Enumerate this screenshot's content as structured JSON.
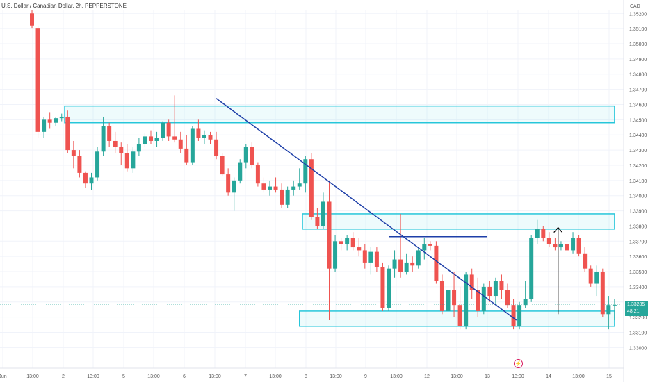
{
  "header": {
    "title": "U.S. Dollar / Canadian Dollar, 2h, PEPPERSTONE",
    "currency": "CAD"
  },
  "last_price": {
    "value": "1.33285",
    "countdown": "48:21"
  },
  "colors": {
    "up": "#26a69a",
    "down": "#ef5350",
    "zone": "#26c6da",
    "trendline": "#1e3fa8",
    "grid": "#f0f3fa",
    "arrow": "#000000",
    "last_price_line": "#26a69a"
  },
  "icons": {
    "event": "lightning-icon"
  },
  "chart_data": {
    "type": "candlestick",
    "title": "U.S. Dollar / Canadian Dollar, 2h, PEPPERSTONE",
    "y_axis": {
      "ylim": [
        1.3285,
        1.3526
      ],
      "ticks": [
        "1.33000",
        "1.33100",
        "1.33200",
        "1.33300",
        "1.33400",
        "1.33500",
        "1.33600",
        "1.33700",
        "1.33800",
        "1.33900",
        "1.34000",
        "1.34100",
        "1.34200",
        "1.34300",
        "1.34400",
        "1.34500",
        "1.34600",
        "1.34700",
        "1.34800",
        "1.34900",
        "1.35000",
        "1.35100",
        "1.35200"
      ]
    },
    "x_axis": {
      "ticks": [
        "Jun",
        "13:00",
        "2",
        "13:00",
        "5",
        "13:00",
        "6",
        "13:00",
        "7",
        "13:00",
        "8",
        "13:00",
        "9",
        "13:00",
        "12",
        "13:00",
        "13",
        "13:00",
        "14",
        "13:00",
        "15"
      ],
      "bar_index_range": [
        0,
        99
      ]
    },
    "ohlc": [
      [
        1.352,
        1.3522,
        1.351,
        1.3512
      ],
      [
        1.351,
        1.3512,
        1.3438,
        1.3442
      ],
      [
        1.3442,
        1.3452,
        1.3438,
        1.345
      ],
      [
        1.345,
        1.3455,
        1.3444,
        1.3448
      ],
      [
        1.3448,
        1.3452,
        1.3446,
        1.3451
      ],
      [
        1.3451,
        1.3454,
        1.3449,
        1.3452
      ],
      [
        1.3452,
        1.3456,
        1.3428,
        1.343
      ],
      [
        1.343,
        1.3436,
        1.3418,
        1.3426
      ],
      [
        1.3426,
        1.343,
        1.3412,
        1.3415
      ],
      [
        1.3415,
        1.3416,
        1.3405,
        1.3408
      ],
      [
        1.3408,
        1.3415,
        1.3404,
        1.3412
      ],
      [
        1.3412,
        1.3432,
        1.341,
        1.3429
      ],
      [
        1.3429,
        1.3452,
        1.3426,
        1.3446
      ],
      [
        1.3446,
        1.3448,
        1.3432,
        1.3436
      ],
      [
        1.3436,
        1.3442,
        1.3428,
        1.3432
      ],
      [
        1.3432,
        1.3435,
        1.342,
        1.3428
      ],
      [
        1.3428,
        1.3434,
        1.3416,
        1.3418
      ],
      [
        1.3418,
        1.3432,
        1.3415,
        1.3429
      ],
      [
        1.3429,
        1.3438,
        1.3426,
        1.3434
      ],
      [
        1.3434,
        1.3441,
        1.3432,
        1.3439
      ],
      [
        1.3439,
        1.3443,
        1.3434,
        1.3436
      ],
      [
        1.3436,
        1.3442,
        1.3432,
        1.3438
      ],
      [
        1.3438,
        1.3449,
        1.3436,
        1.3448
      ],
      [
        1.3448,
        1.345,
        1.3436,
        1.3439
      ],
      [
        1.3439,
        1.3466,
        1.3435,
        1.3437
      ],
      [
        1.3437,
        1.3442,
        1.3428,
        1.3431
      ],
      [
        1.3431,
        1.344,
        1.342,
        1.3422
      ],
      [
        1.3422,
        1.3446,
        1.342,
        1.3444
      ],
      [
        1.3444,
        1.345,
        1.3436,
        1.3438
      ],
      [
        1.3438,
        1.3443,
        1.3434,
        1.344
      ],
      [
        1.344,
        1.3442,
        1.3434,
        1.3437
      ],
      [
        1.3437,
        1.3442,
        1.3424,
        1.3426
      ],
      [
        1.3426,
        1.3428,
        1.3413,
        1.3414
      ],
      [
        1.3414,
        1.3418,
        1.34,
        1.3402
      ],
      [
        1.3402,
        1.3412,
        1.339,
        1.341
      ],
      [
        1.341,
        1.3424,
        1.3408,
        1.3422
      ],
      [
        1.3422,
        1.3434,
        1.3418,
        1.3432
      ],
      [
        1.3432,
        1.3435,
        1.3418,
        1.342
      ],
      [
        1.342,
        1.3422,
        1.3406,
        1.3408
      ],
      [
        1.3408,
        1.3412,
        1.3402,
        1.3404
      ],
      [
        1.3404,
        1.341,
        1.34,
        1.3406
      ],
      [
        1.3406,
        1.3412,
        1.3402,
        1.3404
      ],
      [
        1.3404,
        1.3408,
        1.3392,
        1.3394
      ],
      [
        1.3394,
        1.3406,
        1.3392,
        1.3404
      ],
      [
        1.3404,
        1.341,
        1.34,
        1.3406
      ],
      [
        1.3406,
        1.3418,
        1.3404,
        1.3408
      ],
      [
        1.3408,
        1.3426,
        1.3402,
        1.3424
      ],
      [
        1.3424,
        1.3428,
        1.3384,
        1.3386
      ],
      [
        1.3386,
        1.3392,
        1.3378,
        1.338
      ],
      [
        1.338,
        1.3402,
        1.3378,
        1.3396
      ],
      [
        1.3396,
        1.341,
        1.3318,
        1.3352
      ],
      [
        1.3352,
        1.3374,
        1.335,
        1.337
      ],
      [
        1.337,
        1.3372,
        1.3364,
        1.3368
      ],
      [
        1.3368,
        1.3374,
        1.3364,
        1.3372
      ],
      [
        1.3372,
        1.3376,
        1.3364,
        1.3366
      ],
      [
        1.3366,
        1.3372,
        1.336,
        1.3364
      ],
      [
        1.3364,
        1.3368,
        1.3352,
        1.3356
      ],
      [
        1.3356,
        1.3366,
        1.3348,
        1.3363
      ],
      [
        1.3363,
        1.3366,
        1.335,
        1.3353
      ],
      [
        1.3353,
        1.3356,
        1.3324,
        1.3326
      ],
      [
        1.3326,
        1.3354,
        1.3324,
        1.3352
      ],
      [
        1.3352,
        1.3364,
        1.3346,
        1.3358
      ],
      [
        1.3358,
        1.3388,
        1.3346,
        1.335
      ],
      [
        1.335,
        1.3362,
        1.3348,
        1.3356
      ],
      [
        1.3356,
        1.336,
        1.335,
        1.3354
      ],
      [
        1.3354,
        1.3366,
        1.3352,
        1.3364
      ],
      [
        1.3364,
        1.3372,
        1.3358,
        1.3368
      ],
      [
        1.3368,
        1.337,
        1.3364,
        1.3367
      ],
      [
        1.3367,
        1.337,
        1.3342,
        1.3344
      ],
      [
        1.3344,
        1.3348,
        1.3322,
        1.3324
      ],
      [
        1.3324,
        1.3344,
        1.332,
        1.3338
      ],
      [
        1.3338,
        1.335,
        1.332,
        1.3328
      ],
      [
        1.3328,
        1.334,
        1.3312,
        1.3314
      ],
      [
        1.3314,
        1.335,
        1.3312,
        1.3348
      ],
      [
        1.3348,
        1.3352,
        1.3332,
        1.3338
      ],
      [
        1.3338,
        1.3346,
        1.332,
        1.3324
      ],
      [
        1.3324,
        1.3342,
        1.3322,
        1.334
      ],
      [
        1.334,
        1.3344,
        1.333,
        1.3334
      ],
      [
        1.3334,
        1.3346,
        1.3328,
        1.3344
      ],
      [
        1.3344,
        1.3348,
        1.3332,
        1.3338
      ],
      [
        1.3338,
        1.3342,
        1.3326,
        1.3328
      ],
      [
        1.3328,
        1.3332,
        1.3312,
        1.3314
      ],
      [
        1.3314,
        1.333,
        1.3312,
        1.3328
      ],
      [
        1.3328,
        1.3344,
        1.3326,
        1.3332
      ],
      [
        1.3332,
        1.3374,
        1.333,
        1.3372
      ],
      [
        1.3372,
        1.3384,
        1.3368,
        1.3378
      ],
      [
        1.3378,
        1.338,
        1.337,
        1.3372
      ],
      [
        1.3372,
        1.3376,
        1.3366,
        1.3368
      ],
      [
        1.3368,
        1.3372,
        1.3364,
        1.3366
      ],
      [
        1.3366,
        1.337,
        1.3364,
        1.3368
      ],
      [
        1.3368,
        1.3372,
        1.336,
        1.3364
      ],
      [
        1.3364,
        1.3376,
        1.3362,
        1.3372
      ],
      [
        1.3372,
        1.3374,
        1.336,
        1.3362
      ],
      [
        1.3362,
        1.3366,
        1.335,
        1.3352
      ],
      [
        1.3352,
        1.3354,
        1.334,
        1.3342
      ],
      [
        1.3342,
        1.3354,
        1.3334,
        1.335
      ],
      [
        1.335,
        1.3352,
        1.332,
        1.3322
      ],
      [
        1.3322,
        1.3334,
        1.3312,
        1.3328
      ],
      [
        1.3328,
        1.3332,
        1.3318,
        1.3328
      ]
    ],
    "drawings": {
      "zones": [
        {
          "x_range": [
            5.5,
            98
          ],
          "y_range": [
            1.3448,
            1.3459
          ]
        },
        {
          "x_range": [
            45.5,
            98
          ],
          "y_range": [
            1.3378,
            1.3388
          ]
        },
        {
          "x_range": [
            45,
            98
          ],
          "y_range": [
            1.3314,
            1.3324
          ]
        }
      ],
      "trendline": {
        "from": [
          31,
          1.3464
        ],
        "to": [
          81.5,
          1.3318
        ]
      },
      "horizontal_segment": {
        "x_range": [
          60,
          76.5
        ],
        "y": 1.3373
      },
      "arrow": {
        "x": 88.5,
        "from_y": 1.3322,
        "to_y": 1.3379
      },
      "last_price_line": 1.33285
    }
  }
}
